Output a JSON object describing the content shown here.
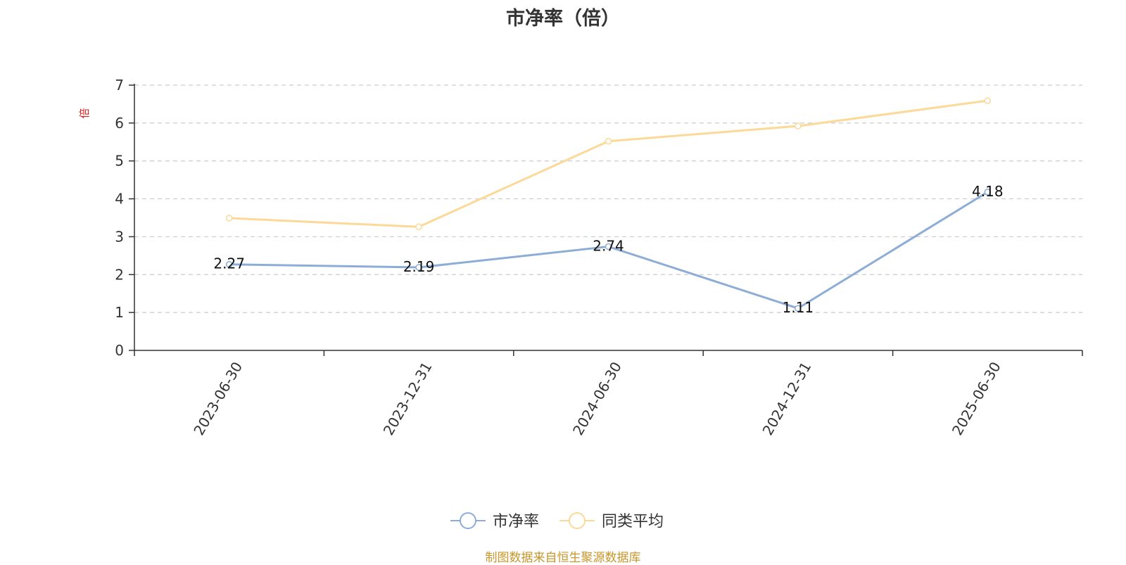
{
  "chart_data": {
    "type": "line",
    "title": "市净率（倍）",
    "ylabel": "倍",
    "xlabel": "",
    "ylim": [
      0,
      7
    ],
    "yticks": [
      0,
      1,
      2,
      3,
      4,
      5,
      6,
      7
    ],
    "grid": true,
    "legend_position": "bottom-center",
    "categories": [
      "2023-06-30",
      "2023-12-31",
      "2024-06-30",
      "2024-12-31",
      "2025-06-30"
    ],
    "series": [
      {
        "name": "市净率",
        "color": "#8eadd6",
        "values": [
          2.27,
          2.19,
          2.74,
          1.11,
          4.18
        ],
        "labels": [
          "2.27",
          "2.19",
          "2.74",
          "1.11",
          "4.18"
        ],
        "show_labels": true
      },
      {
        "name": "同类平均",
        "color": "#fcd999",
        "values": [
          3.49,
          3.26,
          5.52,
          5.92,
          6.59
        ],
        "show_labels": false
      }
    ],
    "source": "制图数据来自恒生聚源数据库",
    "colors": {
      "axis": "#333333",
      "grid": "#cccccc",
      "unit": "#e02020",
      "source": "#c8962a"
    }
  }
}
